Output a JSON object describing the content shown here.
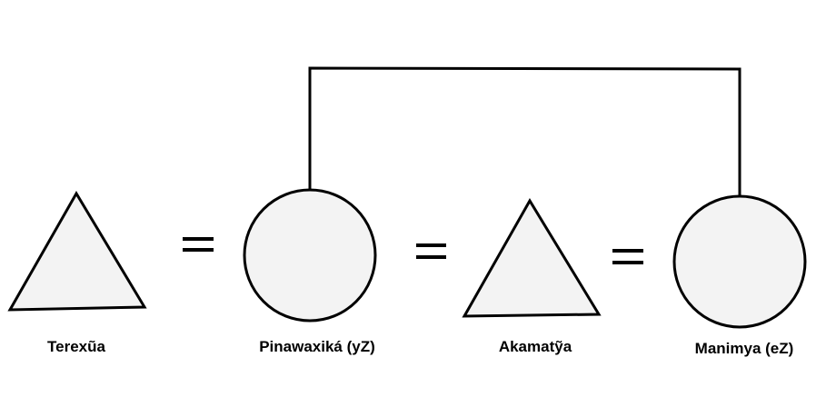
{
  "people": [
    {
      "shape": "triangle",
      "sex": "male",
      "name": "Terexũa"
    },
    {
      "shape": "circle",
      "sex": "female",
      "name": "Pinawaxiká (yZ)"
    },
    {
      "shape": "triangle",
      "sex": "male",
      "name": "Akamatỹa"
    },
    {
      "shape": "circle",
      "sex": "female",
      "name": "Manimya (eZ)"
    }
  ],
  "relations": [
    {
      "type": "marriage",
      "symbol": "=",
      "between": [
        0,
        1
      ]
    },
    {
      "type": "marriage",
      "symbol": "=",
      "between": [
        1,
        2
      ]
    },
    {
      "type": "marriage",
      "symbol": "=",
      "between": [
        2,
        3
      ]
    },
    {
      "type": "sibling",
      "between": [
        1,
        3
      ]
    }
  ],
  "colors": {
    "shape_fill": "#f3f3f3",
    "line": "#000000",
    "text": "#000000"
  }
}
